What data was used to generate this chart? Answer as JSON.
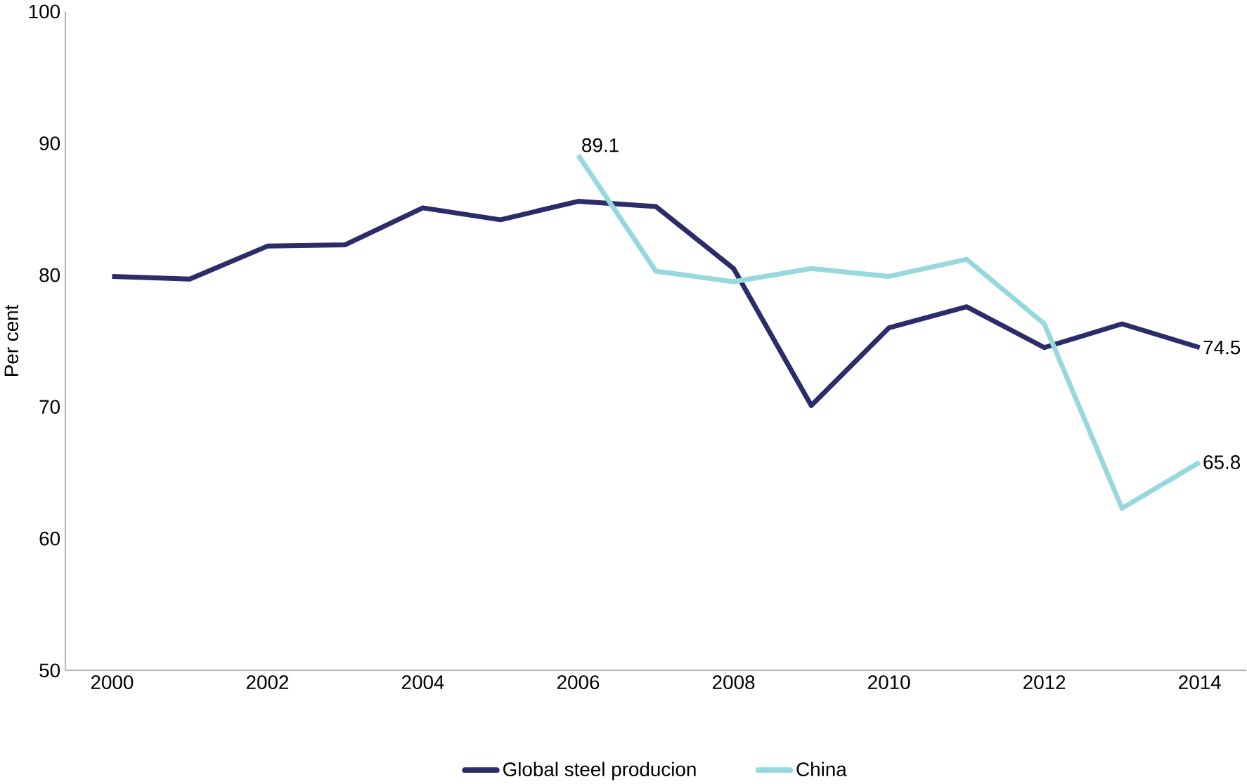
{
  "chart_data": {
    "type": "line",
    "ylabel": "Per cent",
    "x": [
      2000,
      2001,
      2002,
      2003,
      2004,
      2005,
      2006,
      2007,
      2008,
      2009,
      2010,
      2011,
      2012,
      2013,
      2014
    ],
    "series": [
      {
        "name": "Global steel producion",
        "color": "#2b2d6b",
        "values": [
          79.9,
          79.7,
          82.2,
          82.3,
          85.1,
          84.2,
          85.6,
          85.2,
          80.5,
          70.1,
          76.0,
          77.6,
          74.5,
          76.3,
          74.5
        ],
        "value_labels": [
          null,
          null,
          null,
          null,
          null,
          null,
          null,
          null,
          null,
          null,
          null,
          null,
          null,
          null,
          "74.5"
        ]
      },
      {
        "name": "China",
        "color": "#97d8de",
        "values": [
          null,
          null,
          null,
          null,
          null,
          null,
          89.1,
          80.3,
          79.5,
          80.5,
          79.9,
          81.2,
          76.3,
          62.3,
          65.8
        ],
        "value_labels": [
          null,
          null,
          null,
          null,
          null,
          null,
          "89.1",
          null,
          null,
          null,
          null,
          null,
          null,
          null,
          "65.8"
        ]
      }
    ],
    "xlim": [
      1999.4,
      2014.6
    ],
    "xticks": [
      2000,
      2002,
      2004,
      2006,
      2008,
      2010,
      2012,
      2014
    ],
    "ylim": [
      50,
      100
    ],
    "yticks": [
      50,
      60,
      70,
      80,
      90,
      100
    ],
    "grid": false,
    "legend": "bottom",
    "marker": "none",
    "line_style": "solid"
  }
}
